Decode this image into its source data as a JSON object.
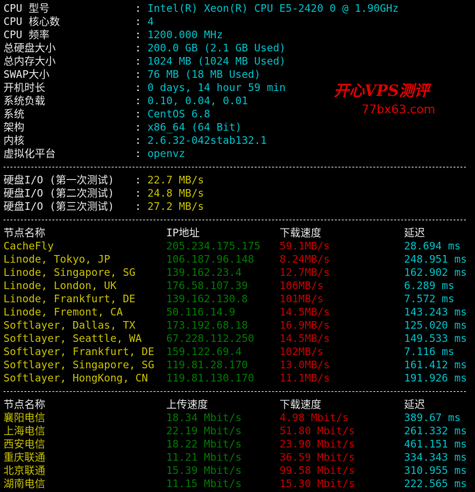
{
  "colors": {
    "label": "#e6e6e6",
    "value": "#00c0c8",
    "disk": "#c8c000",
    "ip": "#007a00",
    "speed": "#c80000",
    "latency": "#00c0c8"
  },
  "sysinfo": [
    {
      "label": "CPU 型号",
      "value": "Intel(R) Xeon(R) CPU E5-2420 0 @ 1.90GHz"
    },
    {
      "label": "CPU 核心数",
      "value": "4"
    },
    {
      "label": "CPU 频率",
      "value": "1200.000 MHz"
    },
    {
      "label": "总硬盘大小",
      "value": "200.0 GB (2.1 GB Used)"
    },
    {
      "label": "总内存大小",
      "value": "1024 MB (1024 MB Used)"
    },
    {
      "label": "SWAP大小",
      "value": "76 MB (18 MB Used)"
    },
    {
      "label": "开机时长",
      "value": "0 days, 14 hour 59 min"
    },
    {
      "label": "系统负载",
      "value": "0.10, 0.04, 0.01"
    },
    {
      "label": "系统",
      "value": "CentOS 6.8"
    },
    {
      "label": "架构",
      "value": "x86_64 (64 Bit)"
    },
    {
      "label": "内核",
      "value": "2.6.32-042stab132.1"
    },
    {
      "label": "虚拟化平台",
      "value": "openvz"
    }
  ],
  "disk_io": [
    {
      "label": "硬盘I/O (第一次测试)",
      "value": "22.7 MB/s"
    },
    {
      "label": "硬盘I/O (第二次测试)",
      "value": "24.8 MB/s"
    },
    {
      "label": "硬盘I/O (第三次测试)",
      "value": "27.2 MB/s"
    }
  ],
  "node_table": {
    "headers": [
      "节点名称",
      "IP地址",
      "下载速度",
      "延迟"
    ],
    "rows": [
      [
        "CacheFly",
        "205.234.175.175",
        "59.1MB/s",
        "28.694 ms"
      ],
      [
        "Linode, Tokyo, JP",
        "106.187.96.148",
        "8.24MB/s",
        "248.951 ms"
      ],
      [
        "Linode, Singapore, SG",
        "139.162.23.4",
        "12.7MB/s",
        "162.902 ms"
      ],
      [
        "Linode, London, UK",
        "176.58.107.39",
        "106MB/s",
        "6.289 ms"
      ],
      [
        "Linode, Frankfurt, DE",
        "139.162.130.8",
        "101MB/s",
        "7.572 ms"
      ],
      [
        "Linode, Fremont, CA",
        "50.116.14.9",
        "14.5MB/s",
        "143.243 ms"
      ],
      [
        "Softlayer, Dallas, TX",
        "173.192.68.18",
        "16.9MB/s",
        "125.020 ms"
      ],
      [
        "Softlayer, Seattle, WA",
        "67.228.112.250",
        "14.5MB/s",
        "149.533 ms"
      ],
      [
        "Softlayer, Frankfurt, DE",
        "159.122.69.4",
        "102MB/s",
        "7.116 ms"
      ],
      [
        "Softlayer, Singapore, SG",
        "119.81.28.170",
        "13.0MB/s",
        "161.412 ms"
      ],
      [
        "Softlayer, HongKong, CN",
        "119.81.130.170",
        "11.1MB/s",
        "191.926 ms"
      ]
    ]
  },
  "cn_table": {
    "headers": [
      "节点名称",
      "上传速度",
      "下载速度",
      "延迟"
    ],
    "rows": [
      [
        "襄阳电信",
        "18.34 Mbit/s",
        "4.98 Mbit/s",
        "389.67 ms"
      ],
      [
        "上海电信",
        "22.19 Mbit/s",
        "51.80 Mbit/s",
        "261.332 ms"
      ],
      [
        "西安电信",
        "18.22 Mbit/s",
        "23.90 Mbit/s",
        "461.151 ms"
      ],
      [
        "重庆联通",
        "11.21 Mbit/s",
        "36.59 Mbit/s",
        "334.343 ms"
      ],
      [
        "北京联通",
        "15.39 Mbit/s",
        "99.58 Mbit/s",
        "310.955 ms"
      ],
      [
        "湖南电信",
        "11.15 Mbit/s",
        "15.30 Mbit/s",
        "222.565 ms"
      ]
    ]
  },
  "separator": ":",
  "watermark": {
    "line1": "开心VPS测评",
    "line2": "77bx63.com"
  }
}
